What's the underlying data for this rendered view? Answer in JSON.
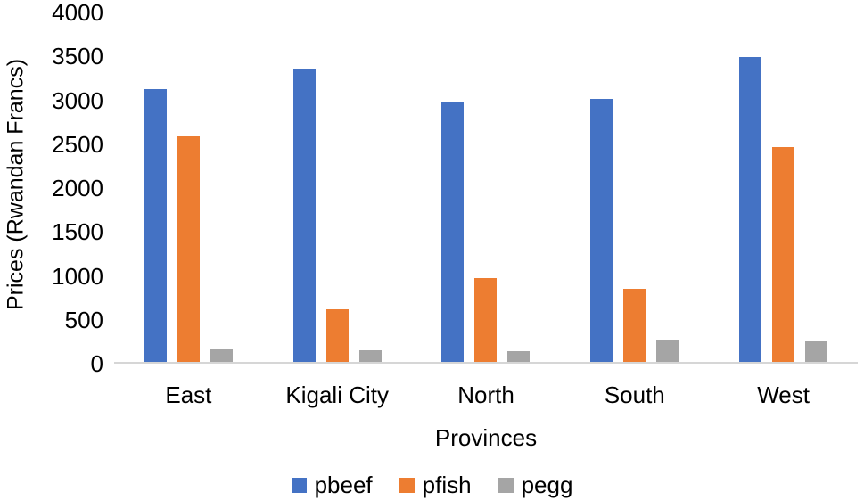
{
  "chart_data": {
    "type": "bar",
    "title": "",
    "xlabel": "Provinces",
    "ylabel": "Prices (Rwandan Francs)",
    "categories": [
      "East",
      "Kigali City",
      "North",
      "South",
      "West"
    ],
    "series": [
      {
        "name": "pbeef",
        "color": "#4472C4",
        "values": [
          3120,
          3360,
          2980,
          3010,
          3490
        ]
      },
      {
        "name": "pfish",
        "color": "#ED7D31",
        "values": [
          2580,
          600,
          960,
          840,
          2460
        ]
      },
      {
        "name": "pegg",
        "color": "#A5A5A5",
        "values": [
          140,
          130,
          120,
          260,
          230
        ]
      }
    ],
    "ylim": [
      0,
      4000
    ],
    "yticks": [
      0,
      500,
      1000,
      1500,
      2000,
      2500,
      3000,
      3500,
      4000
    ],
    "grid": false,
    "legend_position": "bottom"
  }
}
